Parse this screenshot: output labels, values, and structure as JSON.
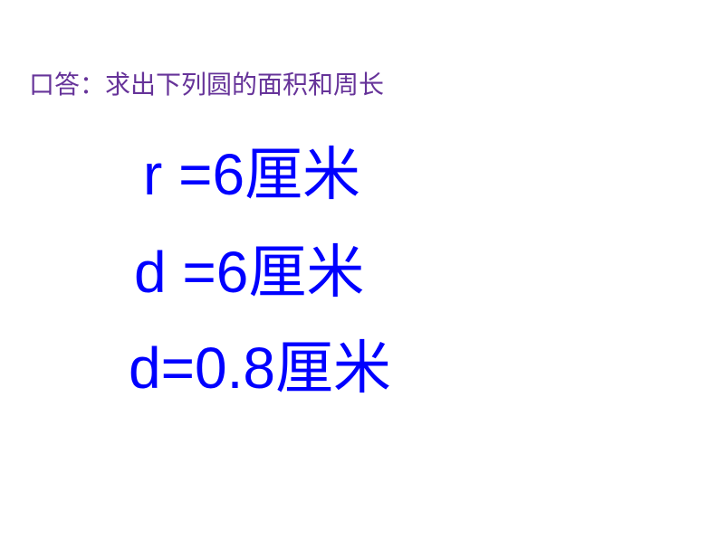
{
  "title": {
    "text": "口答：求出下列圆的面积和周长",
    "color": "#663399",
    "fontsize": 28,
    "fontweight": "normal",
    "fontfamily": "SimSun, serif"
  },
  "equations": {
    "line1": {
      "text": "r =6厘米",
      "color": "#0000ff",
      "fontsize": 64,
      "fontweight": "normal"
    },
    "line2": {
      "text": "d =6厘米",
      "color": "#0000ff",
      "fontsize": 64,
      "fontweight": "normal"
    },
    "line3": {
      "text": "d=0.8厘米",
      "color": "#0000ff",
      "fontsize": 64,
      "fontweight": "normal"
    }
  },
  "background_color": "#ffffff"
}
